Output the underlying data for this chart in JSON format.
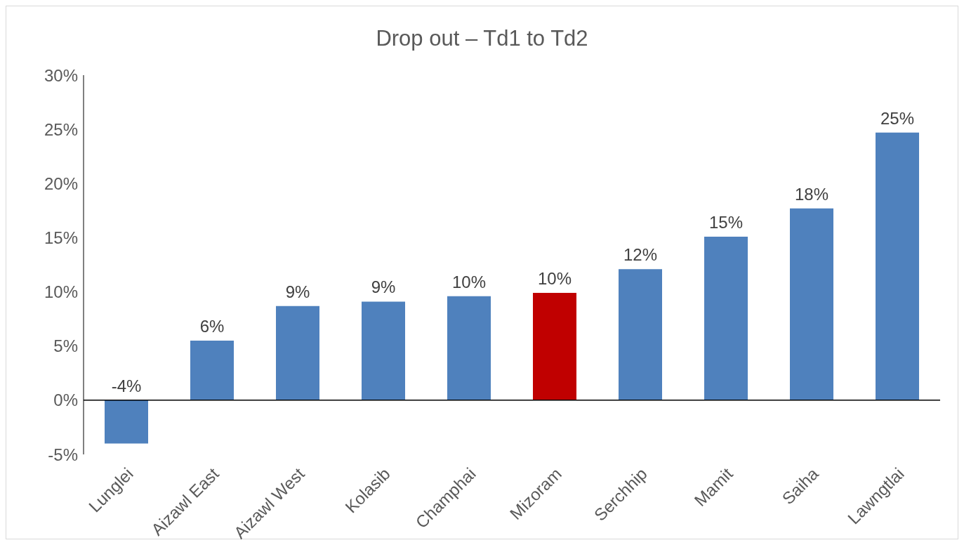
{
  "chart_data": {
    "type": "bar",
    "title": "Drop out – Td1 to Td2",
    "categories": [
      "Lunglei",
      "Aizawl East",
      "Aizawl West",
      "Kolasib",
      "Champhai",
      "Mizoram",
      "Serchhip",
      "Mamit",
      "Saiha",
      "Lawngtlai"
    ],
    "values": [
      -4,
      5.5,
      8.7,
      9.1,
      9.6,
      9.9,
      12.1,
      15.1,
      17.7,
      24.7
    ],
    "value_labels": [
      "-4%",
      "6%",
      "9%",
      "9%",
      "10%",
      "10%",
      "12%",
      "15%",
      "18%",
      "25%"
    ],
    "colors": [
      "#4f81bd",
      "#4f81bd",
      "#4f81bd",
      "#4f81bd",
      "#4f81bd",
      "#c00000",
      "#4f81bd",
      "#4f81bd",
      "#4f81bd",
      "#4f81bd"
    ],
    "ylim": [
      -5,
      30
    ],
    "yticks": [
      {
        "value": -5,
        "label": "-5%"
      },
      {
        "value": 0,
        "label": "0%"
      },
      {
        "value": 5,
        "label": "5%"
      },
      {
        "value": 10,
        "label": "10%"
      },
      {
        "value": 15,
        "label": "15%"
      },
      {
        "value": 20,
        "label": "20%"
      },
      {
        "value": 25,
        "label": "25%"
      },
      {
        "value": 30,
        "label": "30%"
      }
    ],
    "legend": false
  }
}
